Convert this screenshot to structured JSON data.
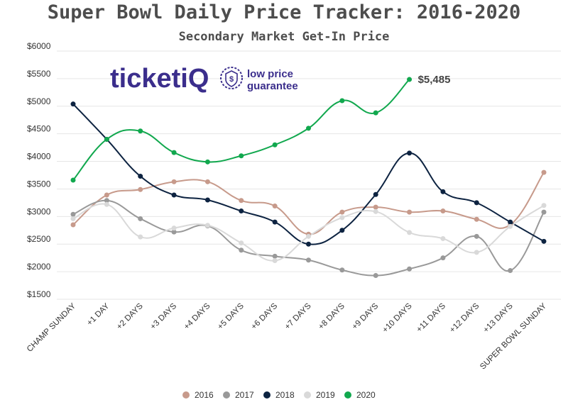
{
  "chart_data": {
    "type": "line",
    "title": "Super Bowl Daily Price Tracker: 2016-2020",
    "subtitle": "Secondary Market Get-In Price",
    "categories": [
      "CHAMP SUNDAY",
      "+1 DAY",
      "+2 DAYS",
      "+3 DAYS",
      "+4 DAYS",
      "+5 DAYS",
      "+6 DAYS",
      "+7 DAYS",
      "+8 DAYS",
      "+9 DAYS",
      "+10 DAYS",
      "+11 DAYS",
      "+12 DAYS",
      "+13 DAYS",
      "SUPER BOWL SUNDAY"
    ],
    "yticks": [
      "$6000",
      "$5500",
      "$5000",
      "$4500",
      "$4000",
      "$3500",
      "$3000",
      "$2500",
      "$2000",
      "$1500"
    ],
    "ylim": [
      1500,
      6000
    ],
    "grid": true,
    "legend_position": "bottom",
    "series": [
      {
        "name": "2016",
        "color": "#c79a8b",
        "values": [
          2850,
          3390,
          3490,
          3630,
          3630,
          3290,
          3190,
          2680,
          3080,
          3170,
          3080,
          3100,
          2950,
          2850,
          3800
        ]
      },
      {
        "name": "2017",
        "color": "#999999",
        "values": [
          3040,
          3290,
          2960,
          2720,
          2830,
          2390,
          2280,
          2210,
          2030,
          1930,
          2050,
          2250,
          2640,
          2020,
          3080
        ]
      },
      {
        "name": "2018",
        "color": "#0d2341",
        "values": [
          5040,
          4400,
          3730,
          3390,
          3300,
          3100,
          2900,
          2500,
          2750,
          3400,
          4150,
          3450,
          3250,
          2900,
          2550
        ]
      },
      {
        "name": "2019",
        "color": "#d9d9d9",
        "values": [
          2960,
          3220,
          2630,
          2790,
          2840,
          2520,
          2200,
          2640,
          2980,
          3090,
          2710,
          2600,
          2350,
          2820,
          3200
        ]
      },
      {
        "name": "2020",
        "color": "#11a84e",
        "values": [
          3660,
          4400,
          4550,
          4160,
          3990,
          4100,
          4300,
          4600,
          5100,
          4880,
          5485,
          null,
          null,
          null,
          null
        ]
      }
    ],
    "annotation": {
      "text": "$5,485",
      "series": "2020",
      "category": "+10 DAYS"
    }
  },
  "logo": {
    "brand_text": "ticketiQ",
    "badge_icon": "dollar-shield-icon",
    "tagline_line1": "low price",
    "tagline_line2": "guarantee",
    "color": "#3b2e8c"
  }
}
